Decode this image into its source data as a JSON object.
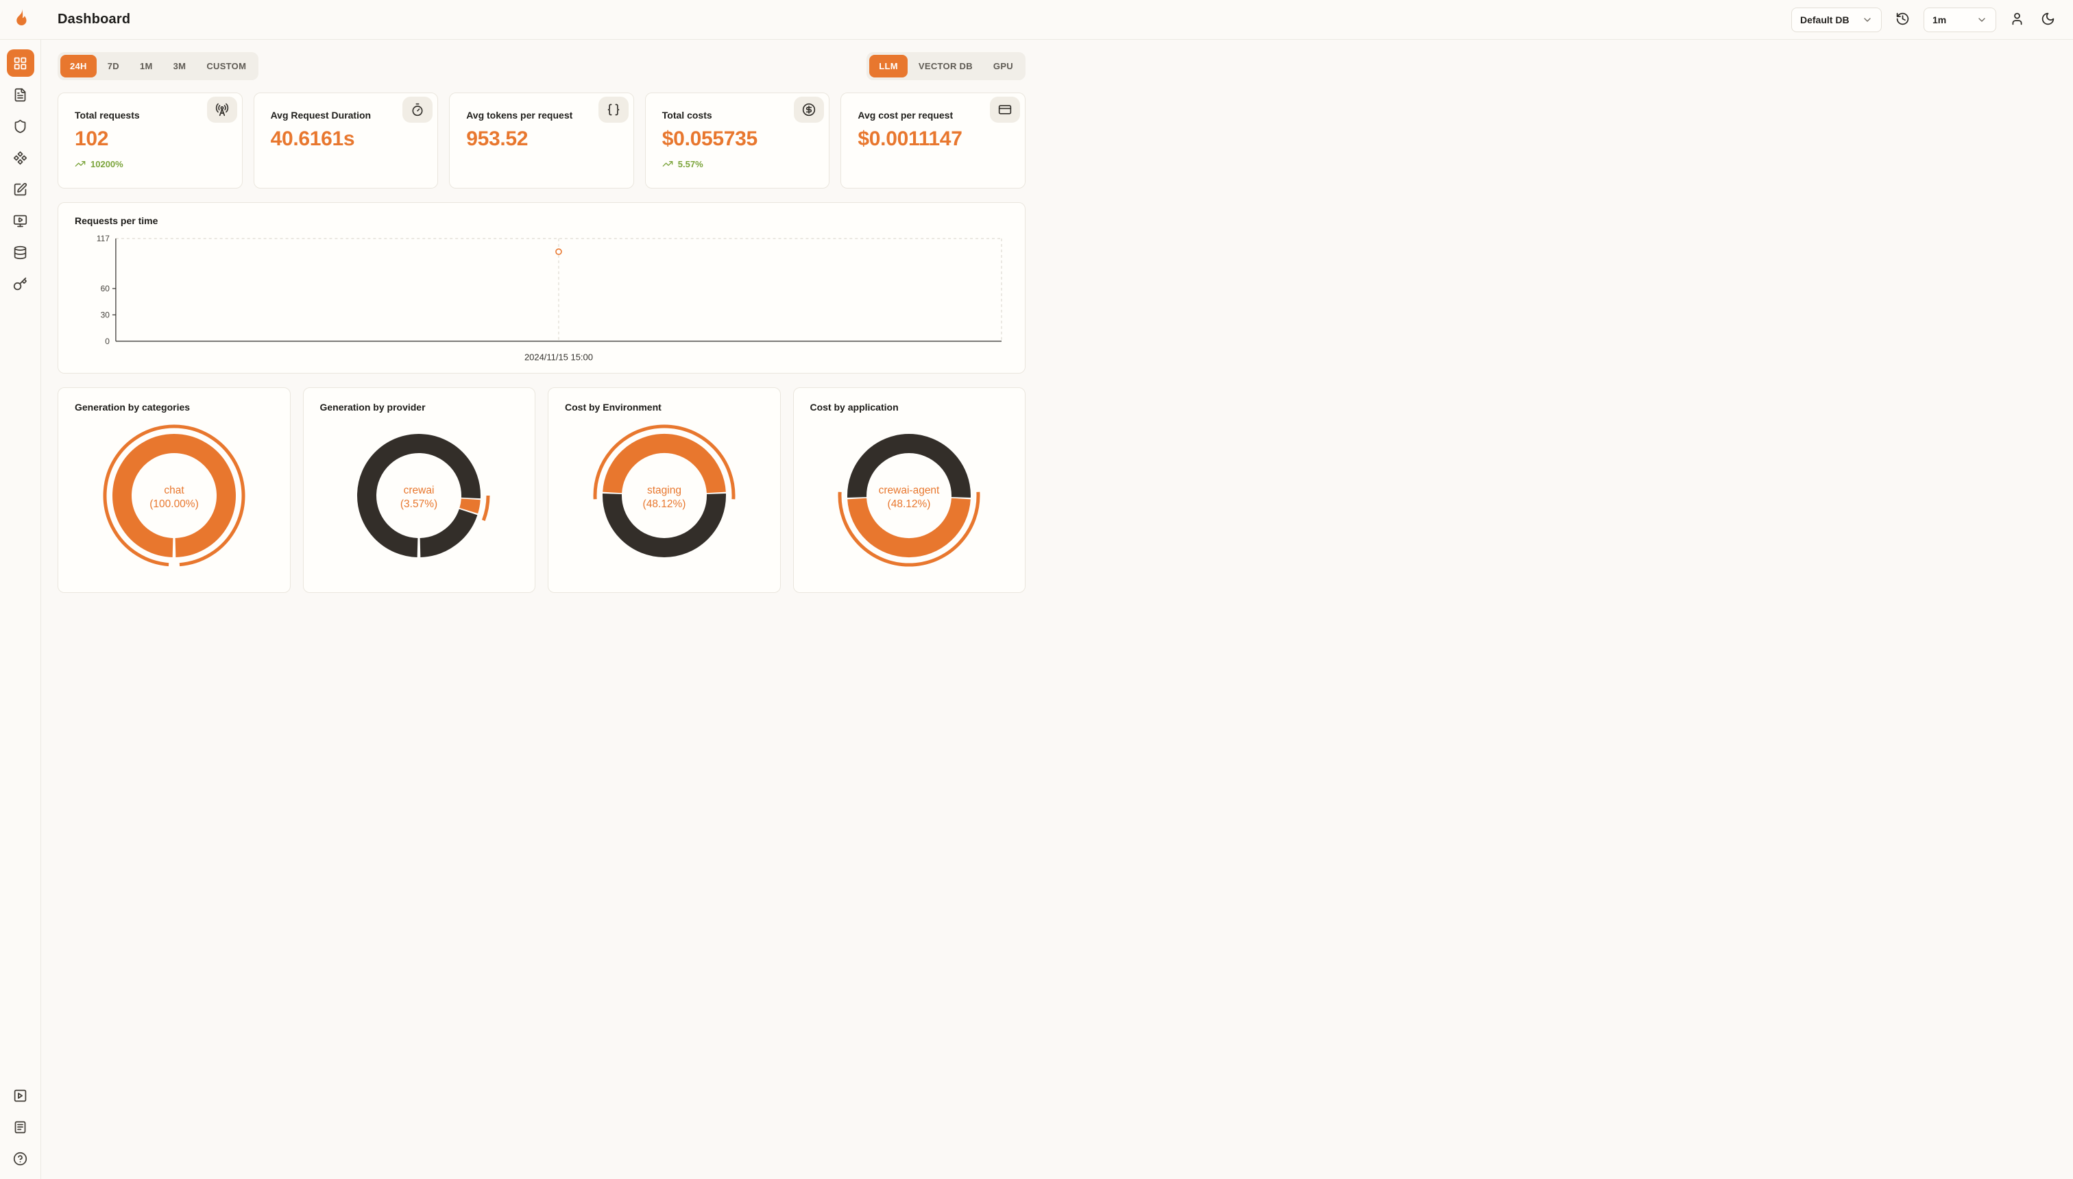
{
  "app": {
    "title": "Dashboard"
  },
  "colors": {
    "accent": "#e8772e",
    "dark": "#332e29",
    "green": "#7ba43b",
    "axis": "#2e2c28",
    "dash": "#d7d3ca"
  },
  "header": {
    "db_select": {
      "value": "Default DB"
    },
    "interval_select": {
      "value": "1m"
    },
    "icons": [
      "history-icon",
      "user-icon",
      "moon-icon"
    ]
  },
  "sidebar": {
    "top": [
      {
        "icon": "layout-grid-icon",
        "name": "dashboard",
        "active": true
      },
      {
        "icon": "file-text-icon",
        "name": "requests",
        "active": false
      },
      {
        "icon": "shield-icon",
        "name": "exceptions",
        "active": false
      },
      {
        "icon": "component-icon",
        "name": "prompts",
        "active": false
      },
      {
        "icon": "square-pen-icon",
        "name": "evaluations",
        "active": false
      },
      {
        "icon": "monitor-play-icon",
        "name": "playground",
        "active": false
      },
      {
        "icon": "database-icon",
        "name": "databases",
        "active": false
      },
      {
        "icon": "key-icon",
        "name": "api-keys",
        "active": false
      }
    ],
    "bottom": [
      {
        "icon": "square-play-icon",
        "name": "getting-started",
        "active": false
      },
      {
        "icon": "file-lines-icon",
        "name": "docs",
        "active": false
      },
      {
        "icon": "help-circle-icon",
        "name": "help",
        "active": false
      }
    ]
  },
  "time_tabs": [
    {
      "label": "24H",
      "active": true
    },
    {
      "label": "7D",
      "active": false
    },
    {
      "label": "1M",
      "active": false
    },
    {
      "label": "3M",
      "active": false
    },
    {
      "label": "CUSTOM",
      "active": false
    }
  ],
  "source_tabs": [
    {
      "label": "LLM",
      "active": true
    },
    {
      "label": "VECTOR DB",
      "active": false
    },
    {
      "label": "GPU",
      "active": false
    }
  ],
  "stat_cards": [
    {
      "label": "Total requests",
      "value": "102",
      "delta": "10200%",
      "icon": "radio-tower-icon"
    },
    {
      "label": "Avg Request Duration",
      "value": "40.6161s",
      "delta": null,
      "icon": "timer-icon"
    },
    {
      "label": "Avg tokens per request",
      "value": "953.52",
      "delta": null,
      "icon": "braces-icon"
    },
    {
      "label": "Total costs",
      "value": "$0.055735",
      "delta": "5.57%",
      "icon": "circle-dollar-icon"
    },
    {
      "label": "Avg cost per request",
      "value": "$0.0011147",
      "delta": null,
      "icon": "credit-card-icon"
    }
  ],
  "chart_data": [
    {
      "type": "line",
      "title": "Requests per time",
      "x": [
        "2024/11/15 15:00"
      ],
      "series": [
        {
          "name": "requests",
          "values": [
            102
          ]
        }
      ],
      "yticks": [
        0,
        30,
        60,
        117
      ],
      "ylim": [
        0,
        117
      ],
      "grid": "dashed top and right borders, dashed guide at data point",
      "point_x_fraction": 0.5
    },
    {
      "type": "pie",
      "title": "Generation by categories",
      "center": [
        "chat",
        "(100.00%)"
      ],
      "data": [
        {
          "name": "chat",
          "pct": 100.0
        }
      ],
      "arcs": [
        {
          "color": "accent",
          "start": 181.5,
          "end": 538.5
        }
      ],
      "outer": {
        "start": 184.5,
        "end": 535.5
      }
    },
    {
      "type": "pie",
      "title": "Generation by provider",
      "center": [
        "crewai",
        "(3.57%)"
      ],
      "data": [
        {
          "name": "crewai",
          "pct": 3.57
        }
      ],
      "arcs": [
        {
          "color": "accent",
          "start": 94,
          "end": 106.9
        },
        {
          "color": "dark",
          "start": 108.4,
          "end": 178.5
        },
        {
          "color": "dark",
          "start": 181.5,
          "end": 452.6
        }
      ],
      "outer": {
        "start": 90,
        "end": 111
      }
    },
    {
      "type": "pie",
      "title": "Cost by Environment",
      "center": [
        "staging",
        "(48.12%)"
      ],
      "data": [
        {
          "name": "staging",
          "pct": 48.12
        }
      ],
      "arcs": [
        {
          "color": "accent",
          "start": 273.4,
          "end": 446.6
        },
        {
          "color": "dark",
          "start": 88.1,
          "end": 271.9
        }
      ],
      "outer": {
        "start": 267,
        "end": 453
      }
    },
    {
      "type": "pie",
      "title": "Cost by application",
      "center": [
        "crewai-agent",
        "(48.12%)"
      ],
      "data": [
        {
          "name": "crewai-agent",
          "pct": 48.12
        }
      ],
      "arcs": [
        {
          "color": "dark",
          "start": 268.1,
          "end": 451.9
        },
        {
          "color": "accent",
          "start": 93.4,
          "end": 266.6
        }
      ],
      "outer": {
        "start": 87,
        "end": 273
      }
    }
  ]
}
